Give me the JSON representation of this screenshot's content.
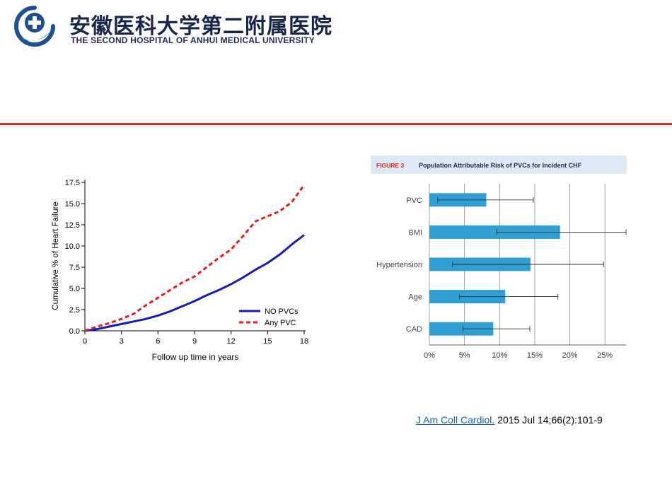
{
  "header": {
    "name_cn": "安徽医科大学第二附属医院",
    "name_en": "THE SECOND HOSPITAL OF ANHUI MEDICAL UNIVERSITY"
  },
  "colors": {
    "accent_red": "#e02a2a",
    "navy": "#19264c",
    "logo_green": "#2e9a4a",
    "logo_blue": "#1e4f8f"
  },
  "chart_data": [
    {
      "type": "line",
      "title": "",
      "xlabel": "Follow up time in years",
      "ylabel": "Cumulative % of Heart Failure",
      "xlim": [
        0,
        18
      ],
      "ylim": [
        0,
        17.5
      ],
      "xticks": [
        "0",
        "3",
        "6",
        "9",
        "12",
        "15",
        "18"
      ],
      "yticks": [
        "0.0",
        "2.5",
        "5.0",
        "7.5",
        "10.0",
        "12.5",
        "15.0",
        "17.5"
      ],
      "legend_position": "bottom-right",
      "series": [
        {
          "name": "NO PVCs",
          "color": "#1a1ab8",
          "style": "solid",
          "x": [
            0,
            1,
            2,
            3,
            4,
            5,
            6,
            7,
            8,
            9,
            10,
            11,
            12,
            13,
            14,
            15,
            16,
            17,
            18
          ],
          "y": [
            0,
            0.2,
            0.5,
            0.8,
            1.1,
            1.4,
            1.8,
            2.3,
            2.9,
            3.5,
            4.2,
            4.8,
            5.5,
            6.3,
            7.2,
            8.0,
            9.0,
            10.2,
            11.3
          ]
        },
        {
          "name": "Any PVC",
          "color": "#e02020",
          "style": "dashed",
          "x": [
            0,
            1,
            2,
            3,
            4,
            5,
            6,
            7,
            8,
            9,
            10,
            11,
            12,
            13,
            14,
            15,
            16,
            17,
            18
          ],
          "y": [
            0,
            0.5,
            0.9,
            1.4,
            2.0,
            3.0,
            3.9,
            4.8,
            5.7,
            6.4,
            7.5,
            8.6,
            9.6,
            11.2,
            12.9,
            13.5,
            14.1,
            15.2,
            17.2
          ]
        }
      ]
    },
    {
      "type": "bar",
      "orientation": "horizontal",
      "figure_label": "FIGURE 3",
      "title": "Population Attributable Risk of PVCs for Incident CHF",
      "categories": [
        "PVC",
        "BMI",
        "Hypertension",
        "Age",
        "CAD"
      ],
      "values": [
        8.1,
        18.6,
        14.4,
        10.8,
        9.1
      ],
      "ci_low": [
        1.2,
        9.6,
        3.3,
        4.3,
        4.8
      ],
      "ci_high": [
        14.8,
        28.0,
        24.8,
        18.3,
        14.3
      ],
      "xticks": [
        "0%",
        "5%",
        "10%",
        "15%",
        "20%",
        "25%"
      ],
      "xlim": [
        0,
        28
      ],
      "bar_color": "#2f9fd3",
      "grid": true
    }
  ],
  "citation": {
    "journal": "J Am Coll Cardiol.",
    "rest": " 2015 Jul 14;66(2):101-9"
  }
}
